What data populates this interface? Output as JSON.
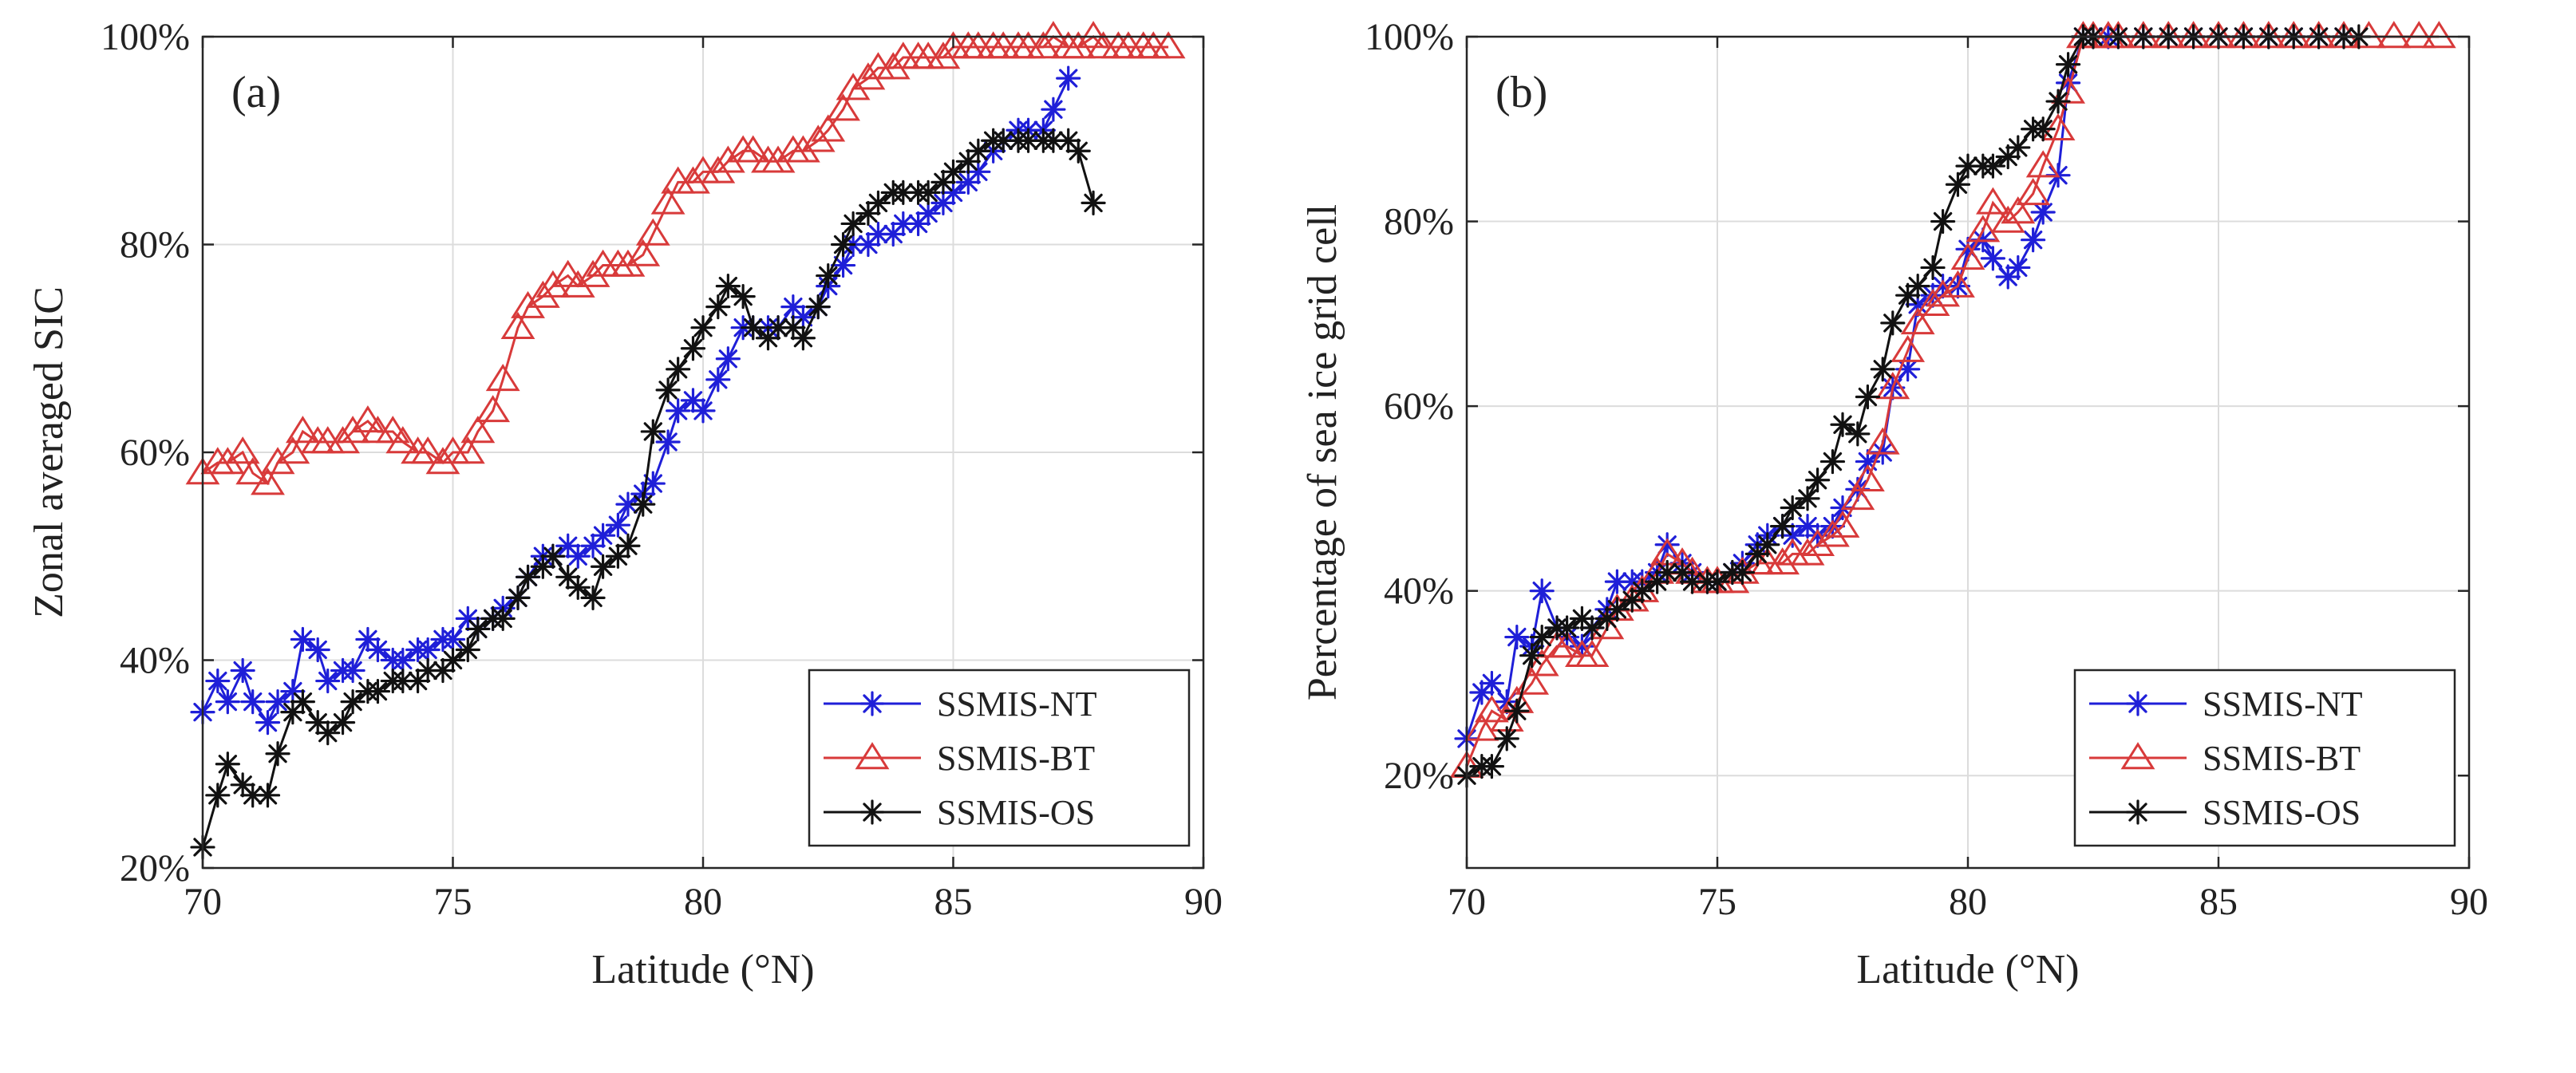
{
  "figure": {
    "panels": [
      "a",
      "b"
    ]
  },
  "chart_data": [
    {
      "type": "line",
      "panel_label": "(a)",
      "xlabel": "Latitude (°N)",
      "ylabel": "Zonal averaged SIC",
      "xlim": [
        70,
        90
      ],
      "ylim": [
        20,
        100
      ],
      "xticks": [
        70,
        75,
        80,
        85,
        90
      ],
      "yticks": [
        20,
        40,
        60,
        80,
        100
      ],
      "ytick_labels": [
        "20%",
        "40%",
        "60%",
        "80%",
        "100%"
      ],
      "grid": true,
      "legend_position": "bottom-right",
      "series": [
        {
          "name": "SSMIS-NT",
          "color": "#1f1fd8",
          "marker": "asterisk",
          "x": [
            70.0,
            70.3,
            70.5,
            70.8,
            71.0,
            71.3,
            71.5,
            71.8,
            72.0,
            72.3,
            72.5,
            72.8,
            73.0,
            73.3,
            73.5,
            73.8,
            74.0,
            74.3,
            74.5,
            74.8,
            75.0,
            75.3,
            75.5,
            75.8,
            76.0,
            76.3,
            76.5,
            76.8,
            77.0,
            77.3,
            77.5,
            77.8,
            78.0,
            78.3,
            78.5,
            78.8,
            79.0,
            79.3,
            79.5,
            79.8,
            80.0,
            80.3,
            80.5,
            80.8,
            81.0,
            81.3,
            81.5,
            81.8,
            82.0,
            82.3,
            82.5,
            82.8,
            83.0,
            83.3,
            83.5,
            83.8,
            84.0,
            84.3,
            84.5,
            84.8,
            85.0,
            85.3,
            85.5,
            85.8,
            86.0,
            86.3,
            86.5,
            86.8,
            87.0,
            87.3
          ],
          "values": [
            35,
            38,
            36,
            39,
            36,
            34,
            36,
            37,
            42,
            41,
            38,
            39,
            39,
            42,
            41,
            40,
            40,
            41,
            41,
            42,
            42,
            44,
            43,
            44,
            45,
            46,
            48,
            50,
            50,
            51,
            50,
            51,
            52,
            53,
            55,
            56,
            57,
            61,
            64,
            65,
            64,
            67,
            69,
            72,
            72,
            72,
            72,
            74,
            73,
            74,
            76,
            78,
            80,
            80,
            81,
            81,
            82,
            82,
            83,
            84,
            85,
            86,
            87,
            89,
            90,
            91,
            91,
            91,
            93,
            96
          ]
        },
        {
          "name": "SSMIS-BT",
          "color": "#d83a3a",
          "marker": "triangle",
          "x": [
            70.0,
            70.3,
            70.5,
            70.8,
            71.0,
            71.3,
            71.5,
            71.8,
            72.0,
            72.3,
            72.5,
            72.8,
            73.0,
            73.3,
            73.5,
            73.8,
            74.0,
            74.3,
            74.5,
            74.8,
            75.0,
            75.3,
            75.5,
            75.8,
            76.0,
            76.3,
            76.5,
            76.8,
            77.0,
            77.3,
            77.5,
            77.8,
            78.0,
            78.3,
            78.5,
            78.8,
            79.0,
            79.3,
            79.5,
            79.8,
            80.0,
            80.3,
            80.5,
            80.8,
            81.0,
            81.3,
            81.5,
            81.8,
            82.0,
            82.3,
            82.5,
            82.8,
            83.0,
            83.3,
            83.5,
            83.8,
            84.0,
            84.3,
            84.5,
            84.8,
            85.0,
            85.3,
            85.5,
            85.8,
            86.0,
            86.3,
            86.5,
            86.8,
            87.0,
            87.3,
            87.5,
            87.8,
            88.0,
            88.3,
            88.5,
            88.8,
            89.0,
            89.3
          ],
          "values": [
            58,
            59,
            59,
            60,
            58,
            57,
            59,
            60,
            62,
            61,
            61,
            61,
            62,
            63,
            62,
            62,
            61,
            60,
            60,
            59,
            60,
            60,
            62,
            64,
            67,
            72,
            74,
            75,
            76,
            77,
            76,
            77,
            78,
            78,
            78,
            79,
            81,
            84,
            86,
            86,
            87,
            87,
            88,
            89,
            89,
            88,
            88,
            89,
            89,
            90,
            91,
            93,
            95,
            96,
            97,
            97,
            98,
            98,
            98,
            98,
            99,
            99,
            99,
            99,
            99,
            99,
            99,
            99,
            100,
            99,
            99,
            100,
            99,
            99,
            99,
            99,
            99,
            99
          ]
        },
        {
          "name": "SSMIS-OS",
          "color": "#111111",
          "marker": "asterisk",
          "x": [
            70.0,
            70.3,
            70.5,
            70.8,
            71.0,
            71.3,
            71.5,
            71.8,
            72.0,
            72.3,
            72.5,
            72.8,
            73.0,
            73.3,
            73.5,
            73.8,
            74.0,
            74.3,
            74.5,
            74.8,
            75.0,
            75.3,
            75.5,
            75.8,
            76.0,
            76.3,
            76.5,
            76.8,
            77.0,
            77.3,
            77.5,
            77.8,
            78.0,
            78.3,
            78.5,
            78.8,
            79.0,
            79.3,
            79.5,
            79.8,
            80.0,
            80.3,
            80.5,
            80.8,
            81.0,
            81.3,
            81.5,
            81.8,
            82.0,
            82.3,
            82.5,
            82.8,
            83.0,
            83.3,
            83.5,
            83.8,
            84.0,
            84.3,
            84.5,
            84.8,
            85.0,
            85.3,
            85.5,
            85.8,
            86.0,
            86.3,
            86.5,
            86.8,
            87.0,
            87.3,
            87.5,
            87.8
          ],
          "values": [
            22,
            27,
            30,
            28,
            27,
            27,
            31,
            35,
            36,
            34,
            33,
            34,
            36,
            37,
            37,
            38,
            38,
            38,
            39,
            39,
            40,
            41,
            43,
            44,
            44,
            46,
            48,
            49,
            50,
            48,
            47,
            46,
            49,
            50,
            51,
            55,
            62,
            66,
            68,
            70,
            72,
            74,
            76,
            75,
            72,
            71,
            72,
            72,
            71,
            74,
            77,
            80,
            82,
            83,
            84,
            85,
            85,
            85,
            85,
            86,
            87,
            88,
            89,
            90,
            90,
            90,
            90,
            90,
            90,
            90,
            89,
            84
          ]
        }
      ]
    },
    {
      "type": "line",
      "panel_label": "(b)",
      "xlabel": "Latitude (°N)",
      "ylabel": "Percentage of sea ice grid cell",
      "xlim": [
        70,
        90
      ],
      "ylim": [
        10,
        100
      ],
      "xticks": [
        70,
        75,
        80,
        85,
        90
      ],
      "yticks": [
        20,
        40,
        60,
        80,
        100
      ],
      "ytick_labels": [
        "20%",
        "40%",
        "60%",
        "80%",
        "100%"
      ],
      "grid": true,
      "legend_position": "bottom-right",
      "series": [
        {
          "name": "SSMIS-NT",
          "color": "#1f1fd8",
          "marker": "asterisk",
          "x": [
            70.0,
            70.3,
            70.5,
            70.8,
            71.0,
            71.3,
            71.5,
            71.8,
            72.0,
            72.3,
            72.5,
            72.8,
            73.0,
            73.3,
            73.5,
            73.8,
            74.0,
            74.3,
            74.5,
            74.8,
            75.0,
            75.3,
            75.5,
            75.8,
            76.0,
            76.3,
            76.5,
            76.8,
            77.0,
            77.3,
            77.5,
            77.8,
            78.0,
            78.3,
            78.5,
            78.8,
            79.0,
            79.3,
            79.5,
            79.8,
            80.0,
            80.3,
            80.5,
            80.8,
            81.0,
            81.3,
            81.5,
            81.8,
            82.0,
            82.3,
            82.5,
            82.8,
            83.0,
            83.5,
            84.0,
            84.5,
            85.0,
            85.5,
            86.0,
            86.5,
            87.0,
            87.5
          ],
          "values": [
            24,
            29,
            30,
            28,
            35,
            34,
            40,
            36,
            35,
            34,
            36,
            38,
            41,
            41,
            41,
            42,
            45,
            43,
            42,
            41,
            41,
            42,
            43,
            45,
            46,
            47,
            46,
            47,
            46,
            47,
            49,
            51,
            54,
            55,
            62,
            64,
            71,
            72,
            73,
            73,
            77,
            78,
            76,
            74,
            75,
            78,
            81,
            85,
            95,
            100,
            100,
            100,
            100,
            100,
            100,
            100,
            100,
            100,
            100,
            100,
            100,
            100
          ]
        },
        {
          "name": "SSMIS-BT",
          "color": "#d83a3a",
          "marker": "triangle",
          "x": [
            70.0,
            70.3,
            70.5,
            70.8,
            71.0,
            71.3,
            71.5,
            71.8,
            72.0,
            72.3,
            72.5,
            72.8,
            73.0,
            73.3,
            73.5,
            73.8,
            74.0,
            74.3,
            74.5,
            74.8,
            75.0,
            75.3,
            75.5,
            75.8,
            76.0,
            76.3,
            76.5,
            76.8,
            77.0,
            77.3,
            77.5,
            77.8,
            78.0,
            78.3,
            78.5,
            78.8,
            79.0,
            79.3,
            79.5,
            79.8,
            80.0,
            80.3,
            80.5,
            80.8,
            81.0,
            81.3,
            81.5,
            81.8,
            82.0,
            82.3,
            82.5,
            82.8,
            83.0,
            83.5,
            84.0,
            84.5,
            85.0,
            85.5,
            86.0,
            86.5,
            87.0,
            87.5,
            88.0,
            88.5,
            89.0,
            89.4
          ],
          "values": [
            21,
            25,
            27,
            26,
            28,
            30,
            32,
            34,
            34,
            33,
            33,
            36,
            38,
            39,
            40,
            42,
            44,
            43,
            42,
            41,
            41,
            41,
            42,
            43,
            43,
            43,
            44,
            44,
            45,
            46,
            47,
            50,
            52,
            56,
            62,
            66,
            69,
            71,
            72,
            73,
            76,
            79,
            82,
            80,
            81,
            83,
            86,
            90,
            94,
            100,
            100,
            100,
            100,
            100,
            100,
            100,
            100,
            100,
            100,
            100,
            100,
            100,
            100,
            100,
            100,
            100
          ]
        },
        {
          "name": "SSMIS-OS",
          "color": "#111111",
          "marker": "asterisk",
          "x": [
            70.0,
            70.3,
            70.5,
            70.8,
            71.0,
            71.3,
            71.5,
            71.8,
            72.0,
            72.3,
            72.5,
            72.8,
            73.0,
            73.3,
            73.5,
            73.8,
            74.0,
            74.3,
            74.5,
            74.8,
            75.0,
            75.3,
            75.5,
            75.8,
            76.0,
            76.3,
            76.5,
            76.8,
            77.0,
            77.3,
            77.5,
            77.8,
            78.0,
            78.3,
            78.5,
            78.8,
            79.0,
            79.3,
            79.5,
            79.8,
            80.0,
            80.3,
            80.5,
            80.8,
            81.0,
            81.3,
            81.5,
            81.8,
            82.0,
            82.3,
            82.5,
            83.0,
            83.5,
            84.0,
            84.5,
            85.0,
            85.5,
            86.0,
            86.5,
            87.0,
            87.5,
            87.8
          ],
          "values": [
            20,
            21,
            21,
            24,
            27,
            33,
            35,
            36,
            36,
            37,
            36,
            37,
            38,
            39,
            40,
            41,
            42,
            42,
            41,
            41,
            41,
            42,
            42,
            44,
            45,
            47,
            49,
            50,
            52,
            54,
            58,
            57,
            61,
            64,
            69,
            72,
            73,
            75,
            80,
            84,
            86,
            86,
            86,
            87,
            88,
            90,
            90,
            93,
            97,
            100,
            100,
            100,
            100,
            100,
            100,
            100,
            100,
            100,
            100,
            100,
            100,
            100
          ]
        }
      ]
    }
  ]
}
